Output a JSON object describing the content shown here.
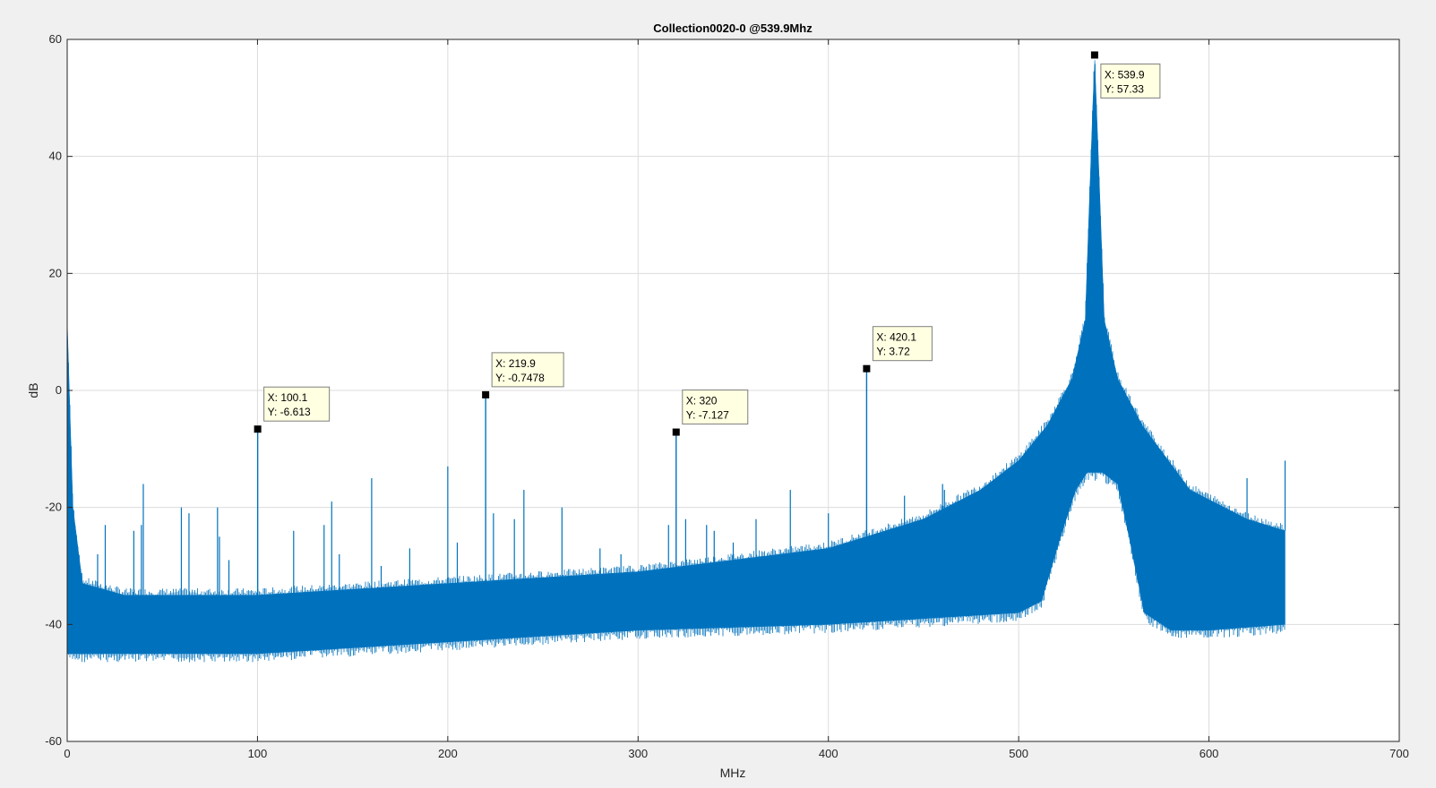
{
  "chart_data": {
    "type": "line",
    "title": "Collection0020-0   @539.9Mhz",
    "xlabel": "MHz",
    "ylabel": "dB",
    "xlim": [
      0,
      700
    ],
    "ylim": [
      -60,
      60
    ],
    "xticks": [
      0,
      100,
      200,
      300,
      400,
      500,
      600,
      700
    ],
    "yticks": [
      -60,
      -40,
      -20,
      0,
      20,
      40,
      60
    ],
    "grid": true,
    "line_color": "#0072bd",
    "series": [
      {
        "x_range": [
          0,
          640
        ],
        "noise_floor_low": [
          [
            0,
            -45
          ],
          [
            100,
            -45
          ],
          [
            200,
            -43
          ],
          [
            300,
            -41
          ],
          [
            400,
            -40
          ],
          [
            500,
            -38
          ],
          [
            512,
            -36
          ],
          [
            522,
            -25
          ],
          [
            530,
            -17
          ],
          [
            536,
            -14
          ],
          [
            544,
            -14
          ],
          [
            552,
            -16
          ],
          [
            558,
            -25
          ],
          [
            566,
            -38
          ],
          [
            580,
            -41
          ],
          [
            600,
            -41
          ],
          [
            640,
            -40
          ]
        ],
        "noise_floor_high": [
          [
            0,
            12
          ],
          [
            3,
            -20
          ],
          [
            8,
            -33
          ],
          [
            30,
            -35
          ],
          [
            100,
            -35
          ],
          [
            200,
            -33
          ],
          [
            300,
            -31
          ],
          [
            400,
            -27
          ],
          [
            450,
            -22
          ],
          [
            480,
            -17
          ],
          [
            500,
            -12
          ],
          [
            515,
            -6
          ],
          [
            528,
            2
          ],
          [
            535,
            12
          ],
          [
            539.9,
            57.33
          ],
          [
            545,
            12
          ],
          [
            552,
            2
          ],
          [
            565,
            -6
          ],
          [
            590,
            -17
          ],
          [
            620,
            -22
          ],
          [
            640,
            -24
          ]
        ],
        "spurs": [
          [
            16,
            -28
          ],
          [
            20,
            -23
          ],
          [
            35,
            -24
          ],
          [
            39,
            -23
          ],
          [
            40,
            -16
          ],
          [
            60,
            -20
          ],
          [
            64,
            -21
          ],
          [
            79,
            -20
          ],
          [
            80,
            -25
          ],
          [
            85,
            -29
          ],
          [
            119,
            -24
          ],
          [
            135,
            -23
          ],
          [
            139,
            -19
          ],
          [
            143,
            -28
          ],
          [
            160,
            -15
          ],
          [
            165,
            -30
          ],
          [
            180,
            -27
          ],
          [
            200,
            -13
          ],
          [
            205,
            -26
          ],
          [
            224,
            -21
          ],
          [
            235,
            -22
          ],
          [
            240,
            -17
          ],
          [
            260,
            -20
          ],
          [
            280,
            -27
          ],
          [
            291,
            -28
          ],
          [
            316,
            -23
          ],
          [
            325,
            -22
          ],
          [
            336,
            -23
          ],
          [
            340,
            -24
          ],
          [
            350,
            -26
          ],
          [
            362,
            -22
          ],
          [
            380,
            -17
          ],
          [
            400,
            -21
          ],
          [
            440,
            -18
          ],
          [
            460,
            -16
          ],
          [
            461,
            -17
          ],
          [
            620,
            -15
          ],
          [
            640,
            -12
          ]
        ]
      }
    ],
    "datatips": [
      {
        "x": 100.1,
        "y": -6.613,
        "x_label": "X: 100.1",
        "y_label": "Y: -6.613"
      },
      {
        "x": 219.9,
        "y": -0.7478,
        "x_label": "X: 219.9",
        "y_label": "Y: -0.7478"
      },
      {
        "x": 320,
        "y": -7.127,
        "x_label": "X: 320",
        "y_label": "Y: -7.127"
      },
      {
        "x": 420.1,
        "y": 3.72,
        "x_label": "X: 420.1",
        "y_label": "Y: 3.72"
      },
      {
        "x": 539.9,
        "y": 57.33,
        "x_label": "X: 539.9",
        "y_label": "Y: 57.33"
      }
    ]
  }
}
